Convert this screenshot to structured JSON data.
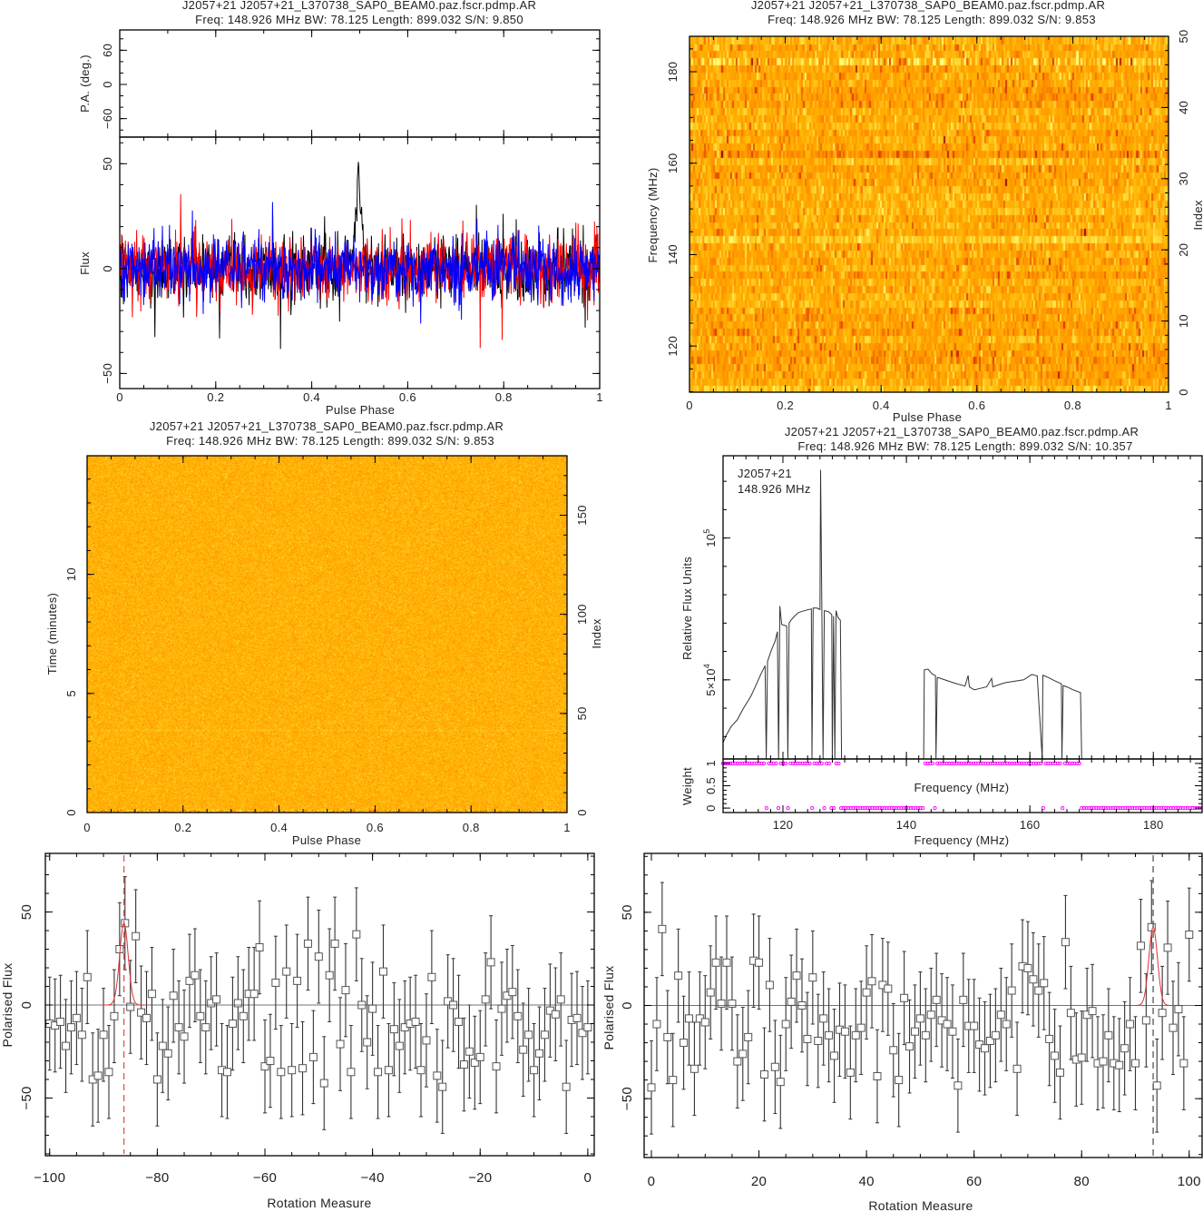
{
  "chart_data": [
    {
      "type": "line",
      "panel": "pulse-profile",
      "title": "J2057+21 J2057+21_L370738_SAP0_BEAM0.paz.fscr.pdmp.AR",
      "subtitle": "Freq: 148.926 MHz BW: 78.125 Length: 899.032 S/N: 9.850",
      "xlabel": "Pulse Phase",
      "ylabel": "Flux",
      "pa_ylabel": "P.A. (deg.)",
      "xlim": [
        0,
        1
      ],
      "ylim": [
        -57.2,
        62.7
      ],
      "pa_ylim": [
        -92.4,
        95.6
      ],
      "xticks": [
        {
          "v": 0,
          "label": "0"
        },
        {
          "v": 0.2,
          "label": "0.2"
        },
        {
          "v": 0.4,
          "label": "0.4"
        },
        {
          "v": 0.6,
          "label": "0.6"
        },
        {
          "v": 0.8,
          "label": "0.8"
        },
        {
          "v": 1,
          "label": "1"
        }
      ],
      "yticks": [
        {
          "v": -50,
          "label": "−50"
        },
        {
          "v": 0,
          "label": "0"
        },
        {
          "v": 50,
          "label": "50"
        }
      ],
      "pa_yticks": [
        {
          "v": -60,
          "label": "−60"
        },
        {
          "v": 0,
          "label": "0"
        },
        {
          "v": 60,
          "label": "60"
        }
      ],
      "nbins": 1024,
      "series": [
        {
          "color": "#000000",
          "noise_rms": 8,
          "pulse_phase": 0.497,
          "pulse_width": 0.007,
          "pulse_peak": 42
        },
        {
          "color": "#ff0000",
          "noise_rms": 8
        },
        {
          "color": "#0000ff",
          "noise_rms": 7.5
        }
      ]
    },
    {
      "type": "heatmap",
      "panel": "frequency-phase",
      "title": "J2057+21 J2057+21_L370738_SAP0_BEAM0.paz.fscr.pdmp.AR",
      "subtitle": "Freq: 148.926 MHz BW: 78.125 Length: 899.032 S/N: 9.853",
      "xlabel": "Pulse Phase",
      "ylabel": "Frequency (MHz)",
      "y2label": "Index",
      "xlim": [
        0,
        1
      ],
      "ylim": [
        109.9,
        187.75
      ],
      "y2lim": [
        0,
        50
      ],
      "xticks": [
        {
          "v": 0,
          "label": "0"
        },
        {
          "v": 0.2,
          "label": "0.2"
        },
        {
          "v": 0.4,
          "label": "0.4"
        },
        {
          "v": 0.6,
          "label": "0.6"
        },
        {
          "v": 0.8,
          "label": "0.8"
        },
        {
          "v": 1,
          "label": "1"
        }
      ],
      "yticks": [
        {
          "v": 120,
          "label": "120"
        },
        {
          "v": 140,
          "label": "140"
        },
        {
          "v": 160,
          "label": "160"
        },
        {
          "v": 180,
          "label": "180"
        }
      ],
      "y2ticks": [
        {
          "v": 0,
          "label": "0"
        },
        {
          "v": 10,
          "label": "10"
        },
        {
          "v": 20,
          "label": "20"
        },
        {
          "v": 30,
          "label": "30"
        },
        {
          "v": 40,
          "label": "40"
        },
        {
          "v": 50,
          "label": "50"
        }
      ],
      "rows": 50,
      "cols": 256,
      "bright_row_index": 46,
      "colormap": [
        "#800000",
        "#d83000",
        "#ff8c00",
        "#ffb000",
        "#ffe040",
        "#ffff80"
      ]
    },
    {
      "type": "heatmap",
      "panel": "time-phase",
      "title": "J2057+21 J2057+21_L370738_SAP0_BEAM0.paz.fscr.pdmp.AR",
      "subtitle": "Freq: 148.926 MHz BW: 78.125 Length: 899.032 S/N: 9.853",
      "xlabel": "Pulse Phase",
      "ylabel": "Time (minutes)",
      "y2label": "Index",
      "xlim": [
        0,
        1
      ],
      "ylim": [
        0,
        14.98
      ],
      "y2lim": [
        0,
        180
      ],
      "xticks": [
        {
          "v": 0,
          "label": "0"
        },
        {
          "v": 0.2,
          "label": "0.2"
        },
        {
          "v": 0.4,
          "label": "0.4"
        },
        {
          "v": 0.6,
          "label": "0.6"
        },
        {
          "v": 0.8,
          "label": "0.8"
        },
        {
          "v": 1,
          "label": "1"
        }
      ],
      "yticks": [
        {
          "v": 0,
          "label": "0"
        },
        {
          "v": 5,
          "label": "5"
        },
        {
          "v": 10,
          "label": "10"
        }
      ],
      "y2ticks": [
        {
          "v": 0,
          "label": "0"
        },
        {
          "v": 50,
          "label": "50"
        },
        {
          "v": 100,
          "label": "100"
        },
        {
          "v": 150,
          "label": "150"
        }
      ],
      "colormap": [
        "#800000",
        "#d83000",
        "#ff8c00",
        "#ffb000",
        "#ffe040",
        "#ffff80"
      ]
    },
    {
      "type": "line",
      "panel": "bandpass",
      "title": "J2057+21 J2057+21_L370738_SAP0_BEAM0.paz.fscr.pdmp.AR",
      "subtitle": "Freq: 148.926 MHz BW: 78.125 Length: 899.032 S/N: 10.357",
      "annotation_source": "J2057+21",
      "annotation_freq": "148.926 MHz",
      "xlabel": "Frequency (MHz)",
      "weight_xlabel": "Frequency (MHz)",
      "ylabel": "Relative Flux Units",
      "weight_ylabel": "Weight",
      "xlim": [
        110.3,
        187.9
      ],
      "ylim": [
        22100,
        129000
      ],
      "weight_ylim": [
        -0.1,
        1.1
      ],
      "xticks": [
        {
          "v": 120,
          "label": "120"
        },
        {
          "v": 140,
          "label": "140"
        },
        {
          "v": 160,
          "label": "160"
        },
        {
          "v": 180,
          "label": "180"
        }
      ],
      "yticks": [
        {
          "v": 50000,
          "base": "5×10",
          "exp": "4"
        },
        {
          "v": 100000,
          "base": "10",
          "exp": "5"
        }
      ],
      "weight_yticks": [
        {
          "v": 0,
          "label": "0"
        },
        {
          "v": 0.5,
          "label": "0.5"
        },
        {
          "v": 1,
          "label": "1"
        }
      ],
      "points": [
        [
          110.3,
          27900
        ],
        [
          110.8,
          30400
        ],
        [
          111.6,
          33500
        ],
        [
          112.6,
          35900
        ],
        [
          113.6,
          40000
        ],
        [
          114.8,
          44200
        ],
        [
          115.6,
          48000
        ],
        [
          116.4,
          51900
        ],
        [
          117.1,
          55000
        ],
        [
          117.3,
          0
        ],
        [
          117.5,
          56500
        ],
        [
          118.1,
          60300
        ],
        [
          118.7,
          63500
        ],
        [
          119.1,
          67000
        ],
        [
          119.3,
          0
        ],
        [
          119.5,
          76000
        ],
        [
          119.8,
          69500
        ],
        [
          120.6,
          69000
        ],
        [
          120.8,
          0
        ],
        [
          121.0,
          70000
        ],
        [
          121.3,
          71000
        ],
        [
          121.9,
          72500
        ],
        [
          122.5,
          73700
        ],
        [
          123.2,
          74200
        ],
        [
          124.0,
          74700
        ],
        [
          124.6,
          75000
        ],
        [
          124.7,
          0
        ],
        [
          124.9,
          75300
        ],
        [
          125.5,
          75300
        ],
        [
          126.0,
          74800
        ],
        [
          126.1,
          124000
        ],
        [
          126.3,
          74500
        ],
        [
          126.5,
          0
        ],
        [
          126.7,
          74400
        ],
        [
          127.4,
          74000
        ],
        [
          127.9,
          73000
        ],
        [
          128.0,
          0
        ],
        [
          128.2,
          72500
        ],
        [
          128.4,
          0
        ],
        [
          128.6,
          74400
        ],
        [
          128.9,
          72000
        ],
        [
          129.3,
          71000
        ],
        [
          129.5,
          0
        ],
        [
          142.8,
          0
        ],
        [
          142.9,
          53500
        ],
        [
          143.5,
          53800
        ],
        [
          144.2,
          52000
        ],
        [
          144.7,
          51500
        ],
        [
          144.8,
          0
        ],
        [
          145.0,
          50800
        ],
        [
          145.3,
          50700
        ],
        [
          146.5,
          49800
        ],
        [
          148.0,
          48700
        ],
        [
          149.5,
          47800
        ],
        [
          150.0,
          51500
        ],
        [
          150.2,
          47500
        ],
        [
          151.0,
          46500
        ],
        [
          152.0,
          47000
        ],
        [
          153.0,
          47500
        ],
        [
          153.8,
          50500
        ],
        [
          154.0,
          47500
        ],
        [
          155.0,
          48300
        ],
        [
          156.0,
          49000
        ],
        [
          157.5,
          49500
        ],
        [
          159.0,
          50000
        ],
        [
          160.3,
          51900
        ],
        [
          161.2,
          51400
        ],
        [
          162.0,
          0
        ],
        [
          162.1,
          51600
        ],
        [
          163.0,
          50800
        ],
        [
          164.0,
          49700
        ],
        [
          165.1,
          48600
        ],
        [
          165.2,
          0
        ],
        [
          165.4,
          48000
        ],
        [
          166.0,
          47500
        ],
        [
          167.0,
          46500
        ],
        [
          168.2,
          45500
        ],
        [
          168.4,
          0
        ]
      ],
      "channel_width_mhz": 0.39,
      "weight_one_ranges": [
        [
          110.3,
          129.4
        ],
        [
          142.8,
          168.4
        ]
      ],
      "zapped_channels": [
        117.3,
        119.3,
        120.8,
        124.7,
        126.5,
        128.0,
        128.4,
        144.8,
        162.0,
        165.2
      ],
      "weight_color": "#ff00ff"
    },
    {
      "type": "scatter",
      "panel": "rm-synthesis-negative",
      "xlabel": "Rotation Measure",
      "ylabel": "Polarised Flux",
      "xlim": [
        -100.8,
        1.2
      ],
      "ylim": [
        -81,
        81.5
      ],
      "xticks": [
        {
          "v": -100,
          "label": "−100"
        },
        {
          "v": -80,
          "label": "−80"
        },
        {
          "v": -60,
          "label": "−60"
        },
        {
          "v": -40,
          "label": "−40"
        },
        {
          "v": -20,
          "label": "−20"
        },
        {
          "v": 0,
          "label": "0"
        }
      ],
      "yticks": [
        {
          "v": -50,
          "label": "−50"
        },
        {
          "v": 0,
          "label": "0"
        },
        {
          "v": 50,
          "label": "50"
        }
      ],
      "x_start": -100,
      "x_step": 1,
      "values": [
        -10,
        -11,
        -9,
        -22,
        -12,
        -7,
        -16,
        15,
        -40,
        -38,
        -16,
        -36,
        -6,
        30,
        44,
        -1,
        37,
        -4,
        -7,
        6,
        -40,
        -22,
        -26,
        5,
        -12,
        -17,
        13,
        16,
        -6,
        -12,
        1,
        3,
        -35,
        -36,
        -10,
        1,
        -6,
        6,
        6,
        31,
        -33,
        -30,
        12,
        -36,
        18,
        -35,
        13,
        -34,
        33,
        -28,
        26,
        -42,
        16,
        33,
        -21,
        8,
        -36,
        38,
        0,
        -20,
        -2,
        -36,
        18,
        -35,
        -13,
        -22,
        -12,
        -10,
        -9,
        -35,
        -19,
        15,
        -38,
        -44,
        2,
        0,
        -9,
        -32,
        -25,
        -31,
        -28,
        3,
        23,
        -33,
        -2,
        5,
        7,
        -6,
        -24,
        -16,
        -35,
        -26,
        -16,
        -3,
        -5,
        3,
        -44,
        -8,
        -7,
        -15,
        -12
      ],
      "error": 25,
      "best_rm": -86.2,
      "fit_peak": 44,
      "fit_width": 0.8,
      "marker_color": "#e05050",
      "fit_color": "#e03030"
    },
    {
      "type": "scatter",
      "panel": "rm-synthesis-positive",
      "xlabel": "Rotation Measure",
      "ylabel": "Polarised Flux",
      "xlim": [
        -1.35,
        102.4
      ],
      "ylim": [
        -81.6,
        81.6
      ],
      "xticks": [
        {
          "v": 0,
          "label": "0"
        },
        {
          "v": 20,
          "label": "20"
        },
        {
          "v": 40,
          "label": "40"
        },
        {
          "v": 60,
          "label": "60"
        },
        {
          "v": 80,
          "label": "80"
        },
        {
          "v": 100,
          "label": "100"
        }
      ],
      "yticks": [
        {
          "v": -50,
          "label": "−50"
        },
        {
          "v": 0,
          "label": "0"
        },
        {
          "v": 50,
          "label": "50"
        }
      ],
      "x_start": 0,
      "x_step": 1,
      "values": [
        -44,
        -10,
        41,
        -17,
        -40,
        16,
        -20,
        -7,
        -34,
        -7,
        -9,
        7,
        23,
        1,
        23,
        1,
        -30,
        -26,
        -17,
        24,
        23,
        -37,
        11,
        -33,
        -41,
        -10,
        2,
        16,
        0,
        -18,
        15,
        -19,
        -7,
        -16,
        -27,
        -13,
        -14,
        -36,
        -16,
        -12,
        7,
        13,
        -38,
        11,
        9,
        -24,
        -40,
        4,
        -22,
        -14,
        -7,
        -16,
        -5,
        3,
        -8,
        -10,
        -14,
        -43,
        3,
        -11,
        -11,
        -21,
        -23,
        -19,
        -16,
        -5,
        -10,
        8,
        -34,
        21,
        20,
        14,
        8,
        12,
        -18,
        -27,
        -36,
        34,
        -4,
        -29,
        -28,
        -5,
        -3,
        -31,
        -30,
        -16,
        -31,
        -32,
        -23,
        -10,
        -31,
        32,
        -8,
        42,
        -43,
        -4,
        31,
        -12,
        -2,
        -31,
        38
      ],
      "error": 25,
      "best_rm": 93.3,
      "fit_peak": 42,
      "fit_width": 0.8,
      "marker_color": "#555555",
      "fit_color": "#e03030"
    }
  ]
}
